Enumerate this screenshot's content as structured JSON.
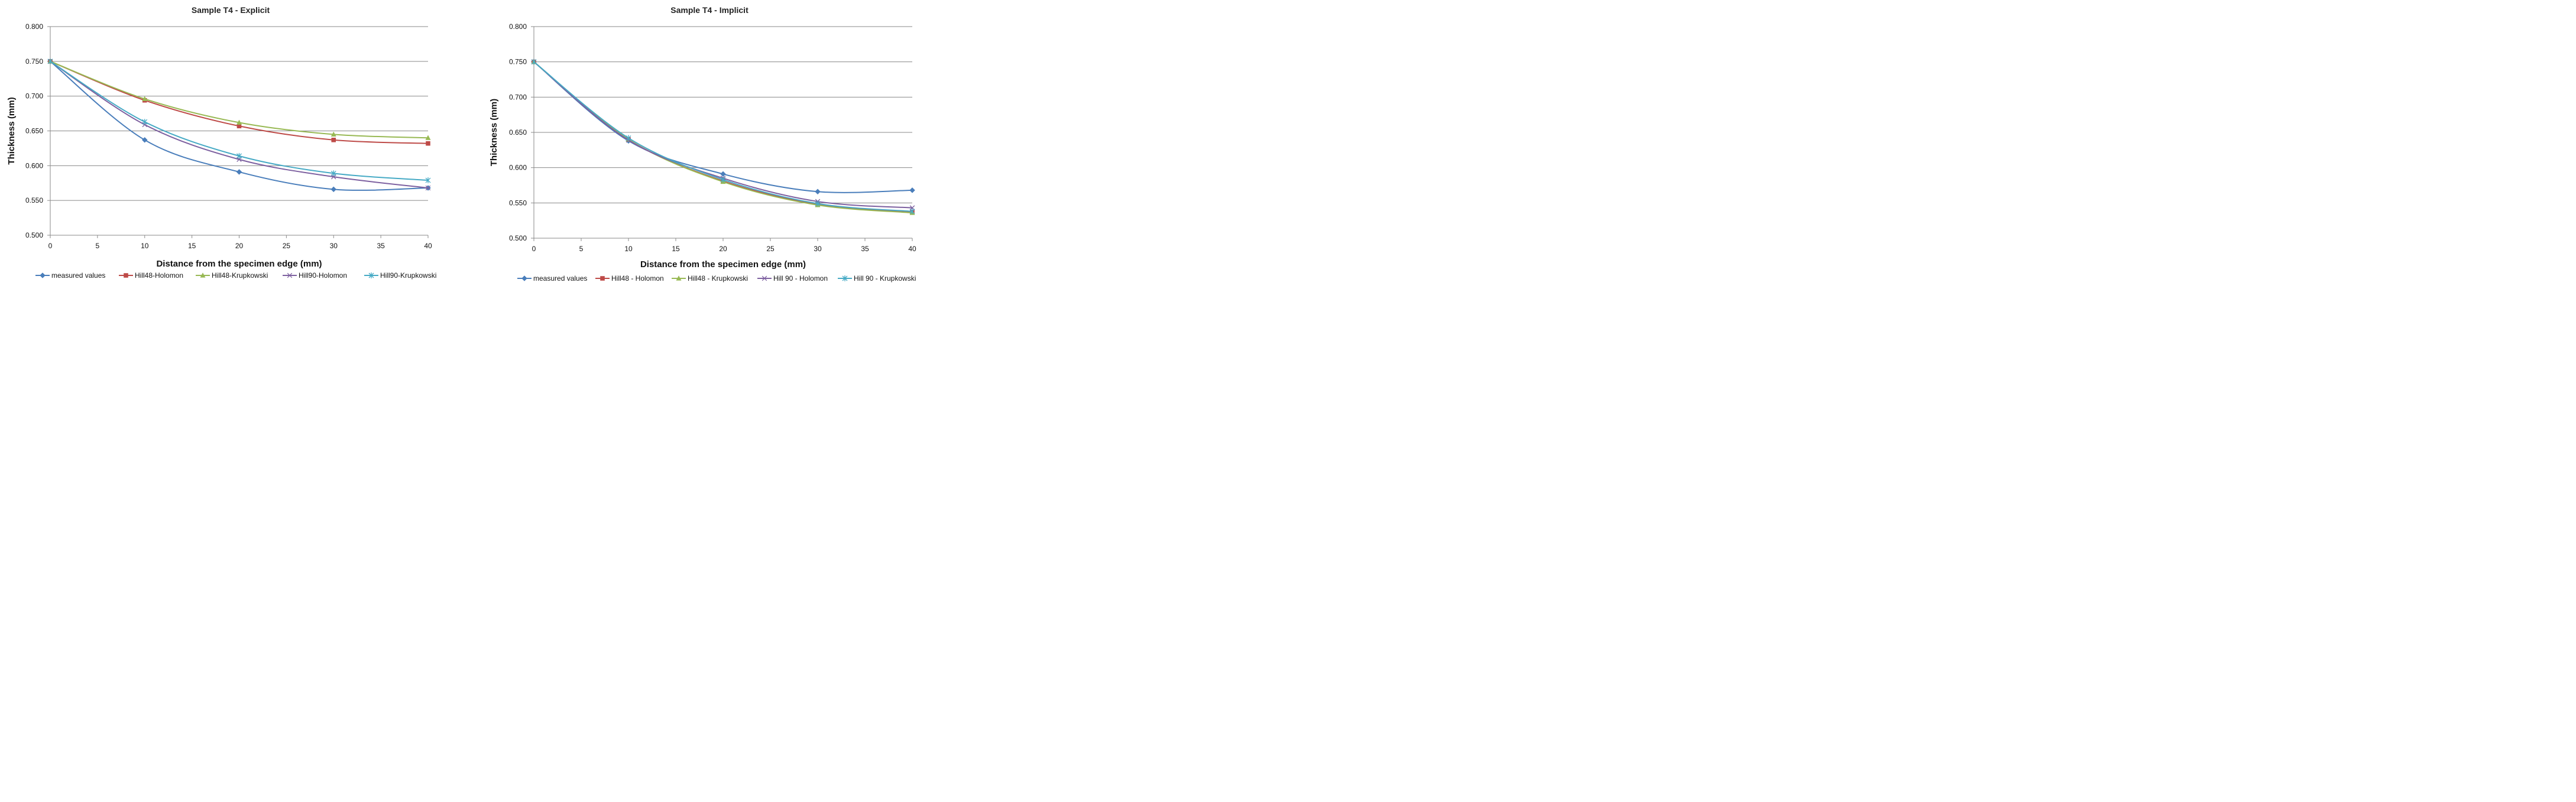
{
  "chart_data": [
    {
      "type": "line",
      "title": "Sample T4 - Explicit",
      "xlabel": "Distance from the specimen edge  (mm)",
      "ylabel": "Thickness  (mm)",
      "xlim": [
        0,
        40
      ],
      "ylim": [
        0.5,
        0.8
      ],
      "xticks": [
        "0",
        "5",
        "10",
        "15",
        "20",
        "25",
        "30",
        "35",
        "40"
      ],
      "yticks": [
        "0.500",
        "0.550",
        "0.600",
        "0.650",
        "0.700",
        "0.750",
        "0.800"
      ],
      "grid": "horizontal",
      "legend": "bottom",
      "x": [
        0,
        10,
        20,
        30,
        40
      ],
      "series": [
        {
          "name": "measured values",
          "color": "#4a7ebb",
          "marker": "diamond",
          "values": [
            0.75,
            0.637,
            0.591,
            0.566,
            0.568
          ]
        },
        {
          "name": "Hill48-Holomon",
          "color": "#be4b48",
          "marker": "square",
          "values": [
            0.75,
            0.694,
            0.657,
            0.637,
            0.632
          ]
        },
        {
          "name": "Hill48-Krupkowski",
          "color": "#98b954",
          "marker": "triangle",
          "values": [
            0.75,
            0.696,
            0.662,
            0.645,
            0.64
          ]
        },
        {
          "name": "Hill90-Holomon",
          "color": "#7d60a0",
          "marker": "x",
          "values": [
            0.75,
            0.659,
            0.609,
            0.584,
            0.568
          ]
        },
        {
          "name": "Hill90-Krupkowski",
          "color": "#46aac5",
          "marker": "star",
          "values": [
            0.75,
            0.663,
            0.614,
            0.589,
            0.579
          ]
        }
      ]
    },
    {
      "type": "line",
      "title": "Sample T4 - Implicit",
      "xlabel": "Distance from the specimen edge  (mm)",
      "ylabel": "Thickness  (mm)",
      "xlim": [
        0,
        40
      ],
      "ylim": [
        0.5,
        0.8
      ],
      "xticks": [
        "0",
        "5",
        "10",
        "15",
        "20",
        "25",
        "30",
        "35",
        "40"
      ],
      "yticks": [
        "0.500",
        "0.550",
        "0.600",
        "0.650",
        "0.700",
        "0.750",
        "0.800"
      ],
      "grid": "horizontal",
      "legend": "bottom",
      "x": [
        0,
        10,
        20,
        30,
        40
      ],
      "series": [
        {
          "name": "measured values",
          "color": "#4a7ebb",
          "marker": "diamond",
          "values": [
            0.75,
            0.638,
            0.591,
            0.566,
            0.568
          ]
        },
        {
          "name": "Hill48 - Holomon",
          "color": "#be4b48",
          "marker": "square",
          "values": [
            0.75,
            0.64,
            0.581,
            0.548,
            0.537
          ]
        },
        {
          "name": "Hill48 - Krupkowski",
          "color": "#98b954",
          "marker": "triangle",
          "values": [
            0.75,
            0.64,
            0.58,
            0.547,
            0.536
          ]
        },
        {
          "name": "Hill 90 - Holomon",
          "color": "#7d60a0",
          "marker": "x",
          "values": [
            0.75,
            0.639,
            0.585,
            0.552,
            0.543
          ]
        },
        {
          "name": "Hill 90 - Krupkowski",
          "color": "#46aac5",
          "marker": "star",
          "values": [
            0.75,
            0.642,
            0.583,
            0.549,
            0.538
          ]
        }
      ]
    }
  ]
}
